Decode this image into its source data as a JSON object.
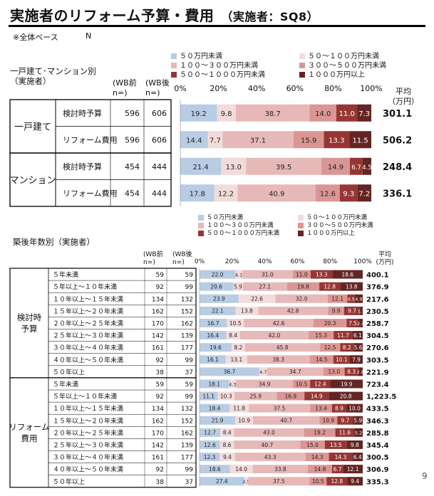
{
  "title": "実施者のリフォーム予算・費用",
  "subtitle": "（実施者：SQ8）",
  "base_note": "※全体ベース",
  "n_label": "N",
  "page_number": "9",
  "legend": [
    {
      "label": "５０万円未満",
      "color": "#b8cce4"
    },
    {
      "label": "５０～１００万円未満",
      "color": "#f2dcdb"
    },
    {
      "label": "１００～３００万円未満",
      "color": "#e6b9b8"
    },
    {
      "label": "３００～５００万円未満",
      "color": "#da9694"
    },
    {
      "label": "５００～１０００万円未満",
      "color": "#963634"
    },
    {
      "label": "１０００万円以上",
      "color": "#632523"
    }
  ],
  "chart_data": [
    {
      "type": "bar",
      "orientation": "horizontal-stacked-100",
      "group_header": "一戸建て･マンション別\n（実施者）",
      "col_wb_before": "(WB前\nn=)",
      "col_wb_after": "(WB後\nn=)",
      "avg_header": "平均\n（万円）",
      "x_ticks": [
        "0%",
        "20%",
        "40%",
        "60%",
        "80%",
        "100%"
      ],
      "xlim": [
        0,
        100
      ],
      "groups": [
        {
          "name": "一戸建て",
          "rows": [
            {
              "label": "検討時予算",
              "n_before": 596,
              "n_after": 606,
              "values": [
                19.2,
                9.8,
                38.7,
                14.0,
                11.0,
                7.3
              ],
              "avg": "301.1"
            },
            {
              "label": "リフォーム費用",
              "n_before": 596,
              "n_after": 606,
              "values": [
                14.4,
                7.7,
                37.1,
                15.9,
                13.3,
                11.5
              ],
              "avg": "506.2"
            }
          ]
        },
        {
          "name": "マンション",
          "rows": [
            {
              "label": "検討時予算",
              "n_before": 454,
              "n_after": 444,
              "values": [
                21.4,
                13.0,
                39.5,
                14.9,
                6.7,
                4.5
              ],
              "avg": "248.4"
            },
            {
              "label": "リフォーム費用",
              "n_before": 454,
              "n_after": 444,
              "values": [
                17.8,
                12.2,
                40.9,
                12.6,
                9.3,
                7.2
              ],
              "avg": "336.1"
            }
          ]
        }
      ]
    },
    {
      "type": "bar",
      "orientation": "horizontal-stacked-100",
      "group_header": "築後年数別（実施者）",
      "col_wb_before": "(WB前\nn=)",
      "col_wb_after": "(WB後\nn=)",
      "avg_header": "平均\n(万円)",
      "x_ticks": [
        "0%",
        "20%",
        "40%",
        "60%",
        "80%",
        "100%"
      ],
      "xlim": [
        0,
        100
      ],
      "groups": [
        {
          "name": "検討時\n予算",
          "rows": [
            {
              "label": "５年未満",
              "n_before": 59,
              "n_after": 59,
              "values": [
                22.0,
                4.1,
                31.0,
                11.0,
                13.3,
                18.6
              ],
              "avg": "400.1"
            },
            {
              "label": "５年以上～１０年未満",
              "n_before": 92,
              "n_after": 99,
              "values": [
                20.6,
                5.9,
                27.1,
                19.8,
                12.8,
                13.8
              ],
              "avg": "376.9"
            },
            {
              "label": "１０年以上～１５年未満",
              "n_before": 134,
              "n_after": 132,
              "values": [
                23.9,
                22.6,
                32.0,
                12.1,
                4.5,
                4.9
              ],
              "avg": "217.6"
            },
            {
              "label": "１５年以上～２０年未満",
              "n_before": 162,
              "n_after": 152,
              "values": [
                22.1,
                13.8,
                42.8,
                9.9,
                9.7,
                1.7
              ],
              "avg": "230.5"
            },
            {
              "label": "２０年以上～２５年未満",
              "n_before": 170,
              "n_after": 162,
              "values": [
                16.7,
                10.5,
                42.6,
                20.3,
                7.5,
                2.4
              ],
              "avg": "258.7"
            },
            {
              "label": "２５年以上～３０年未満",
              "n_before": 142,
              "n_after": 139,
              "values": [
                16.4,
                8.4,
                42.0,
                15.3,
                11.7,
                6.1
              ],
              "avg": "304.5"
            },
            {
              "label": "３０年以上～４０年未満",
              "n_before": 161,
              "n_after": 177,
              "values": [
                19.6,
                8.2,
                45.8,
                12.5,
                8.2,
                5.6
              ],
              "avg": "270.6"
            },
            {
              "label": "４０年以上～５０年未満",
              "n_before": 92,
              "n_after": 99,
              "values": [
                16.1,
                13.1,
                38.3,
                14.5,
                10.1,
                7.9
              ],
              "avg": "303.5"
            },
            {
              "label": "５０年以上",
              "n_before": 38,
              "n_after": 37,
              "values": [
                36.7,
                4.7,
                34.7,
                13.0,
                8.3,
                2.8
              ],
              "avg": "221.9"
            }
          ]
        },
        {
          "name": "リフォーム\n費用",
          "rows": [
            {
              "label": "５年未満",
              "n_before": 59,
              "n_after": 59,
              "values": [
                18.1,
                4.3,
                34.9,
                10.5,
                12.4,
                19.9
              ],
              "avg": "723.4"
            },
            {
              "label": "５年以上～１０年未満",
              "n_before": 92,
              "n_after": 99,
              "values": [
                11.1,
                10.3,
                25.9,
                16.9,
                14.9,
                20.8
              ],
              "avg": "1,223.5"
            },
            {
              "label": "１０年以上～１５年未満",
              "n_before": 134,
              "n_after": 132,
              "values": [
                18.4,
                11.8,
                37.5,
                13.4,
                8.9,
                10.0
              ],
              "avg": "433.5"
            },
            {
              "label": "１５年以上～２０年未満",
              "n_before": 162,
              "n_after": 152,
              "values": [
                21.9,
                10.9,
                40.7,
                10.9,
                9.7,
                5.9
              ],
              "avg": "346.3"
            },
            {
              "label": "２０年以上～２５年未満",
              "n_before": 170,
              "n_after": 162,
              "values": [
                12.7,
                8.4,
                43.0,
                19.2,
                11.6,
                5.2
              ],
              "avg": "285.8"
            },
            {
              "label": "２５年以上～３０年未満",
              "n_before": 142,
              "n_after": 139,
              "values": [
                12.6,
                8.6,
                40.7,
                15.0,
                13.5,
                9.8
              ],
              "avg": "345.4"
            },
            {
              "label": "３０年以上～４０年未満",
              "n_before": 161,
              "n_after": 177,
              "values": [
                12.3,
                9.4,
                43.3,
                14.3,
                14.3,
                6.4
              ],
              "avg": "300.5"
            },
            {
              "label": "４０年以上～５０年未満",
              "n_before": 92,
              "n_after": 99,
              "values": [
                18.6,
                14.0,
                33.8,
                14.8,
                6.7,
                12.1
              ],
              "avg": "306.9"
            },
            {
              "label": "５０年以上",
              "n_before": 38,
              "n_after": 37,
              "values": [
                27.4,
                2.5,
                37.5,
                10.5,
                12.8,
                9.4
              ],
              "avg": "335.3"
            }
          ]
        }
      ]
    }
  ]
}
